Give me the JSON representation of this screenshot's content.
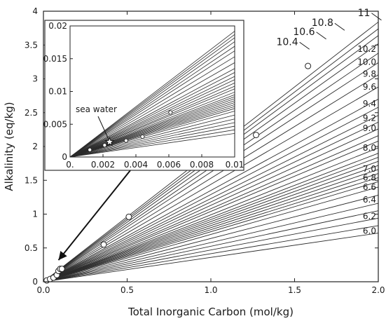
{
  "chart_data": [
    {
      "type": "line",
      "xlabel": "Total Inorganic Carbon (mol/kg)",
      "ylabel": "Alkalinity (eq/kg)",
      "xlim": [
        0,
        2.0
      ],
      "ylim": [
        0,
        4
      ],
      "x_ticks": [
        "0.0",
        "0.5",
        "1.0",
        "1.5",
        "2.0"
      ],
      "y_ticks": [
        "0",
        "0.5",
        "1",
        "1.5",
        "2",
        "2.5",
        "3",
        "3.5",
        "4"
      ],
      "grid": false,
      "ph_lines": [
        {
          "ph": "6.0",
          "slope": 0.36
        },
        {
          "ph": "6.1",
          "slope": 0.415
        },
        {
          "ph": "6.2",
          "slope": 0.47
        },
        {
          "ph": "6.3",
          "slope": 0.525
        },
        {
          "ph": "6.4",
          "slope": 0.58
        },
        {
          "ph": "6.5",
          "slope": 0.64
        },
        {
          "ph": "6.6",
          "slope": 0.7
        },
        {
          "ph": "6.7",
          "slope": 0.74
        },
        {
          "ph": "6.8",
          "slope": 0.77
        },
        {
          "ph": "6.9",
          "slope": 0.8
        },
        {
          "ph": "7.0",
          "slope": 0.83
        },
        {
          "ph": "7.2",
          "slope": 0.86
        },
        {
          "ph": "7.4",
          "slope": 0.89
        },
        {
          "ph": "7.6",
          "slope": 0.92
        },
        {
          "ph": "7.8",
          "slope": 0.95
        },
        {
          "ph": "8.0",
          "slope": 0.99
        },
        {
          "ph": "8.2",
          "slope": 1.04
        },
        {
          "ph": "8.4",
          "slope": 1.08
        },
        {
          "ph": "8.6",
          "slope": 1.13
        },
        {
          "ph": "8.8",
          "slope": 1.18
        },
        {
          "ph": "9.0",
          "slope": 1.23
        },
        {
          "ph": "9.2",
          "slope": 1.29
        },
        {
          "ph": "9.4",
          "slope": 1.35
        },
        {
          "ph": "9.6",
          "slope": 1.44
        },
        {
          "ph": "9.8",
          "slope": 1.53
        },
        {
          "ph": "10.0",
          "slope": 1.62
        },
        {
          "ph": "10.2",
          "slope": 1.69
        },
        {
          "ph": "10.4",
          "slope": 1.76
        },
        {
          "ph": "10.6",
          "slope": 1.82
        },
        {
          "ph": "10.8",
          "slope": 1.87
        },
        {
          "ph": "11",
          "slope": 1.92
        }
      ],
      "right_labels": [
        {
          "text": "6.0",
          "y": 0.75
        },
        {
          "text": "6.2",
          "y": 0.97
        },
        {
          "text": "6.4",
          "y": 1.21
        },
        {
          "text": "6.6",
          "y": 1.4
        },
        {
          "text": "6.8",
          "y": 1.54
        },
        {
          "text": "7.0",
          "y": 1.67
        },
        {
          "text": "8.0",
          "y": 1.98
        },
        {
          "text": "9.0",
          "y": 2.27
        },
        {
          "text": "9.2",
          "y": 2.42
        },
        {
          "text": "9.4",
          "y": 2.63
        },
        {
          "text": "9.6",
          "y": 2.88
        },
        {
          "text": "9.8",
          "y": 3.07
        },
        {
          "text": "10.0",
          "y": 3.25
        },
        {
          "text": "10.2",
          "y": 3.44
        }
      ],
      "callout_labels": [
        {
          "text": "11",
          "x": 1.96,
          "y": 3.93
        },
        {
          "text": "10.8",
          "x": 1.74,
          "y": 3.78
        },
        {
          "text": "10.6",
          "x": 1.63,
          "y": 3.65
        },
        {
          "text": "10.4",
          "x": 1.53,
          "y": 3.5
        }
      ],
      "points": [
        {
          "x": 0.02,
          "y": 0.02
        },
        {
          "x": 0.04,
          "y": 0.04
        },
        {
          "x": 0.06,
          "y": 0.06
        },
        {
          "x": 0.08,
          "y": 0.1
        },
        {
          "x": 0.09,
          "y": 0.16
        },
        {
          "x": 0.1,
          "y": 0.19
        },
        {
          "x": 0.11,
          "y": 0.19
        },
        {
          "x": 0.36,
          "y": 0.55
        },
        {
          "x": 0.51,
          "y": 0.96
        },
        {
          "x": 1.27,
          "y": 2.17
        },
        {
          "x": 1.58,
          "y": 3.19
        }
      ],
      "arrow": {
        "from": {
          "x": 0.52,
          "y": 1.65
        },
        "to": {
          "x": 0.09,
          "y": 0.32
        }
      }
    },
    {
      "type": "line",
      "xlim": [
        0,
        0.01
      ],
      "ylim": [
        0,
        0.02
      ],
      "x_ticks": [
        "0.",
        "0.002",
        "0.004",
        "0.006",
        "0.008",
        "0.01"
      ],
      "y_ticks": [
        "0",
        "0.005",
        "0.01",
        "0.015",
        "0.02"
      ],
      "annotation": "sea water",
      "sea_water_point": {
        "x": 0.0024,
        "y": 0.0023
      },
      "points": [
        {
          "x": 0.0012,
          "y": 0.0011
        },
        {
          "x": 0.0021,
          "y": 0.0018
        },
        {
          "x": 0.0034,
          "y": 0.0025
        },
        {
          "x": 0.0044,
          "y": 0.0031
        },
        {
          "x": 0.0061,
          "y": 0.0068
        }
      ]
    }
  ]
}
